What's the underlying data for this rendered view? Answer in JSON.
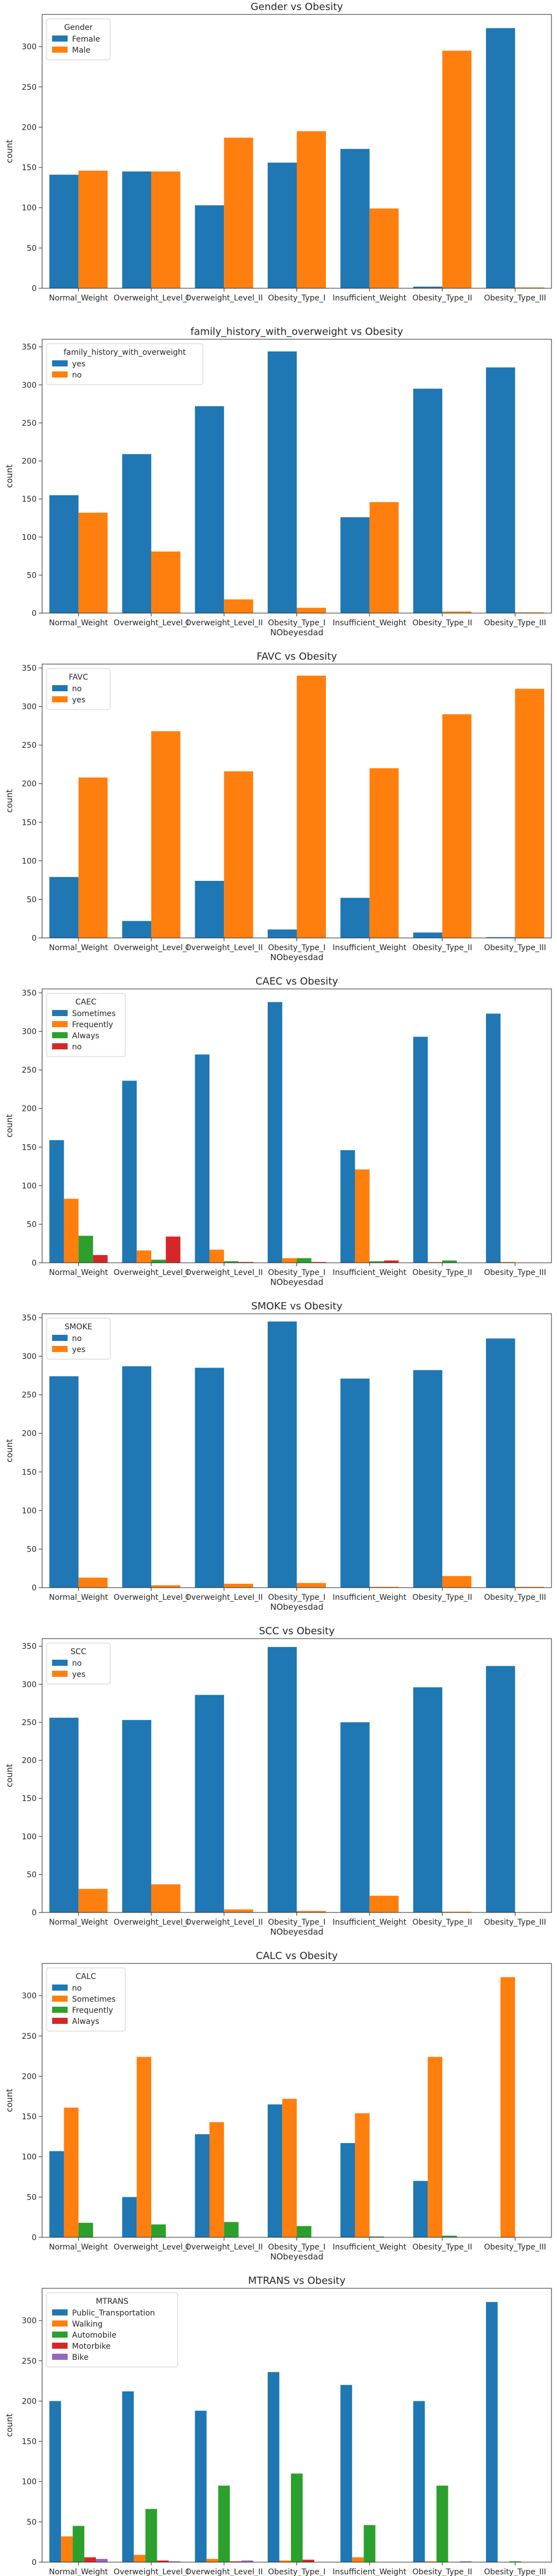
{
  "colors": [
    "#1f77b4",
    "#ff7f0e",
    "#2ca02c",
    "#d62728",
    "#9467bd"
  ],
  "chart_data": [
    {
      "type": "bar",
      "title": "Gender vs Obesity",
      "xlabel": "",
      "ylabel": "count",
      "ylim": [
        0,
        340
      ],
      "yticks": [
        0,
        50,
        100,
        150,
        200,
        250,
        300
      ],
      "legend_title": "Gender",
      "legend_position": "top-left",
      "categories": [
        "Normal_Weight",
        "Overweight_Level_I",
        "Overweight_Level_II",
        "Obesity_Type_I",
        "Insufficient_Weight",
        "Obesity_Type_II",
        "Obesity_Type_III"
      ],
      "series": [
        {
          "name": "Female",
          "values": [
            141,
            145,
            103,
            156,
            173,
            2,
            323
          ]
        },
        {
          "name": "Male",
          "values": [
            146,
            145,
            187,
            195,
            99,
            295,
            1
          ]
        }
      ]
    },
    {
      "type": "bar",
      "title": "family_history_with_overweight vs Obesity",
      "xlabel": "NObeyesdad",
      "ylabel": "count",
      "ylim": [
        0,
        360
      ],
      "yticks": [
        0,
        50,
        100,
        150,
        200,
        250,
        300,
        350
      ],
      "legend_title": "family_history_with_overweight",
      "legend_position": "top-left",
      "categories": [
        "Normal_Weight",
        "Overweight_Level_I",
        "Overweight_Level_II",
        "Obesity_Type_I",
        "Insufficient_Weight",
        "Obesity_Type_II",
        "Obesity_Type_III"
      ],
      "series": [
        {
          "name": "yes",
          "values": [
            155,
            209,
            272,
            344,
            126,
            295,
            323
          ]
        },
        {
          "name": "no",
          "values": [
            132,
            81,
            18,
            7,
            146,
            2,
            1
          ]
        }
      ]
    },
    {
      "type": "bar",
      "title": "FAVC vs Obesity",
      "xlabel": "NObeyesdad",
      "ylabel": "count",
      "ylim": [
        0,
        355
      ],
      "yticks": [
        0,
        50,
        100,
        150,
        200,
        250,
        300,
        350
      ],
      "legend_title": "FAVC",
      "legend_position": "top-left",
      "categories": [
        "Normal_Weight",
        "Overweight_Level_I",
        "Overweight_Level_II",
        "Obesity_Type_I",
        "Insufficient_Weight",
        "Obesity_Type_II",
        "Obesity_Type_III"
      ],
      "series": [
        {
          "name": "no",
          "values": [
            79,
            22,
            74,
            11,
            52,
            7,
            1
          ]
        },
        {
          "name": "yes",
          "values": [
            208,
            268,
            216,
            340,
            220,
            290,
            323
          ]
        }
      ]
    },
    {
      "type": "bar",
      "title": "CAEC vs Obesity",
      "xlabel": "NObeyesdad",
      "ylabel": "count",
      "ylim": [
        0,
        355
      ],
      "yticks": [
        0,
        50,
        100,
        150,
        200,
        250,
        300,
        350
      ],
      "legend_title": "CAEC",
      "legend_position": "top-left",
      "categories": [
        "Normal_Weight",
        "Overweight_Level_I",
        "Overweight_Level_II",
        "Obesity_Type_I",
        "Insufficient_Weight",
        "Obesity_Type_II",
        "Obesity_Type_III"
      ],
      "series": [
        {
          "name": "Sometimes",
          "values": [
            159,
            236,
            270,
            338,
            146,
            293,
            323
          ]
        },
        {
          "name": "Frequently",
          "values": [
            83,
            16,
            17,
            6,
            121,
            1,
            1
          ]
        },
        {
          "name": "Always",
          "values": [
            35,
            4,
            2,
            6,
            2,
            3,
            0
          ]
        },
        {
          "name": "no",
          "values": [
            10,
            34,
            1,
            1,
            3,
            0,
            0
          ]
        }
      ]
    },
    {
      "type": "bar",
      "title": "SMOKE vs Obesity",
      "xlabel": "NObeyesdad",
      "ylabel": "count",
      "ylim": [
        0,
        355
      ],
      "yticks": [
        0,
        50,
        100,
        150,
        200,
        250,
        300,
        350
      ],
      "legend_title": "SMOKE",
      "legend_position": "top-left",
      "categories": [
        "Normal_Weight",
        "Overweight_Level_I",
        "Overweight_Level_II",
        "Obesity_Type_I",
        "Insufficient_Weight",
        "Obesity_Type_II",
        "Obesity_Type_III"
      ],
      "series": [
        {
          "name": "no",
          "values": [
            274,
            287,
            285,
            345,
            271,
            282,
            323
          ]
        },
        {
          "name": "yes",
          "values": [
            13,
            3,
            5,
            6,
            1,
            15,
            1
          ]
        }
      ]
    },
    {
      "type": "bar",
      "title": "SCC vs Obesity",
      "xlabel": "NObeyesdad",
      "ylabel": "count",
      "ylim": [
        0,
        360
      ],
      "yticks": [
        0,
        50,
        100,
        150,
        200,
        250,
        300,
        350
      ],
      "legend_title": "SCC",
      "legend_position": "top-left",
      "categories": [
        "Normal_Weight",
        "Overweight_Level_I",
        "Overweight_Level_II",
        "Obesity_Type_I",
        "Insufficient_Weight",
        "Obesity_Type_II",
        "Obesity_Type_III"
      ],
      "series": [
        {
          "name": "no",
          "values": [
            256,
            253,
            286,
            349,
            250,
            296,
            324
          ]
        },
        {
          "name": "yes",
          "values": [
            31,
            37,
            4,
            2,
            22,
            1,
            0
          ]
        }
      ]
    },
    {
      "type": "bar",
      "title": "CALC vs Obesity",
      "xlabel": "NObeyesdad",
      "ylabel": "count",
      "ylim": [
        0,
        340
      ],
      "yticks": [
        0,
        50,
        100,
        150,
        200,
        250,
        300
      ],
      "legend_title": "CALC",
      "legend_position": "top-left",
      "categories": [
        "Normal_Weight",
        "Overweight_Level_I",
        "Overweight_Level_II",
        "Obesity_Type_I",
        "Insufficient_Weight",
        "Obesity_Type_II",
        "Obesity_Type_III"
      ],
      "series": [
        {
          "name": "no",
          "values": [
            107,
            50,
            128,
            165,
            117,
            70,
            0
          ]
        },
        {
          "name": "Sometimes",
          "values": [
            161,
            224,
            143,
            172,
            154,
            224,
            323
          ]
        },
        {
          "name": "Frequently",
          "values": [
            18,
            16,
            19,
            14,
            1,
            2,
            0
          ]
        },
        {
          "name": "Always",
          "values": [
            0,
            0,
            0,
            0,
            0,
            0,
            0
          ]
        }
      ]
    },
    {
      "type": "bar",
      "title": "MTRANS vs Obesity",
      "xlabel": "NObeyesdad",
      "ylabel": "count",
      "ylim": [
        0,
        340
      ],
      "yticks": [
        0,
        50,
        100,
        150,
        200,
        250,
        300
      ],
      "legend_title": "MTRANS",
      "legend_position": "top-left",
      "categories": [
        "Normal_Weight",
        "Overweight_Level_I",
        "Overweight_Level_II",
        "Obesity_Type_I",
        "Insufficient_Weight",
        "Obesity_Type_II",
        "Obesity_Type_III"
      ],
      "series": [
        {
          "name": "Public_Transportation",
          "values": [
            200,
            212,
            188,
            236,
            220,
            200,
            323
          ]
        },
        {
          "name": "Walking",
          "values": [
            32,
            9,
            4,
            2,
            6,
            1,
            0
          ]
        },
        {
          "name": "Automobile",
          "values": [
            45,
            66,
            95,
            110,
            46,
            95,
            1
          ]
        },
        {
          "name": "Motorbike",
          "values": [
            6,
            2,
            1,
            3,
            0,
            0,
            0
          ]
        },
        {
          "name": "Bike",
          "values": [
            4,
            1,
            2,
            0,
            0,
            1,
            0
          ]
        }
      ]
    }
  ]
}
